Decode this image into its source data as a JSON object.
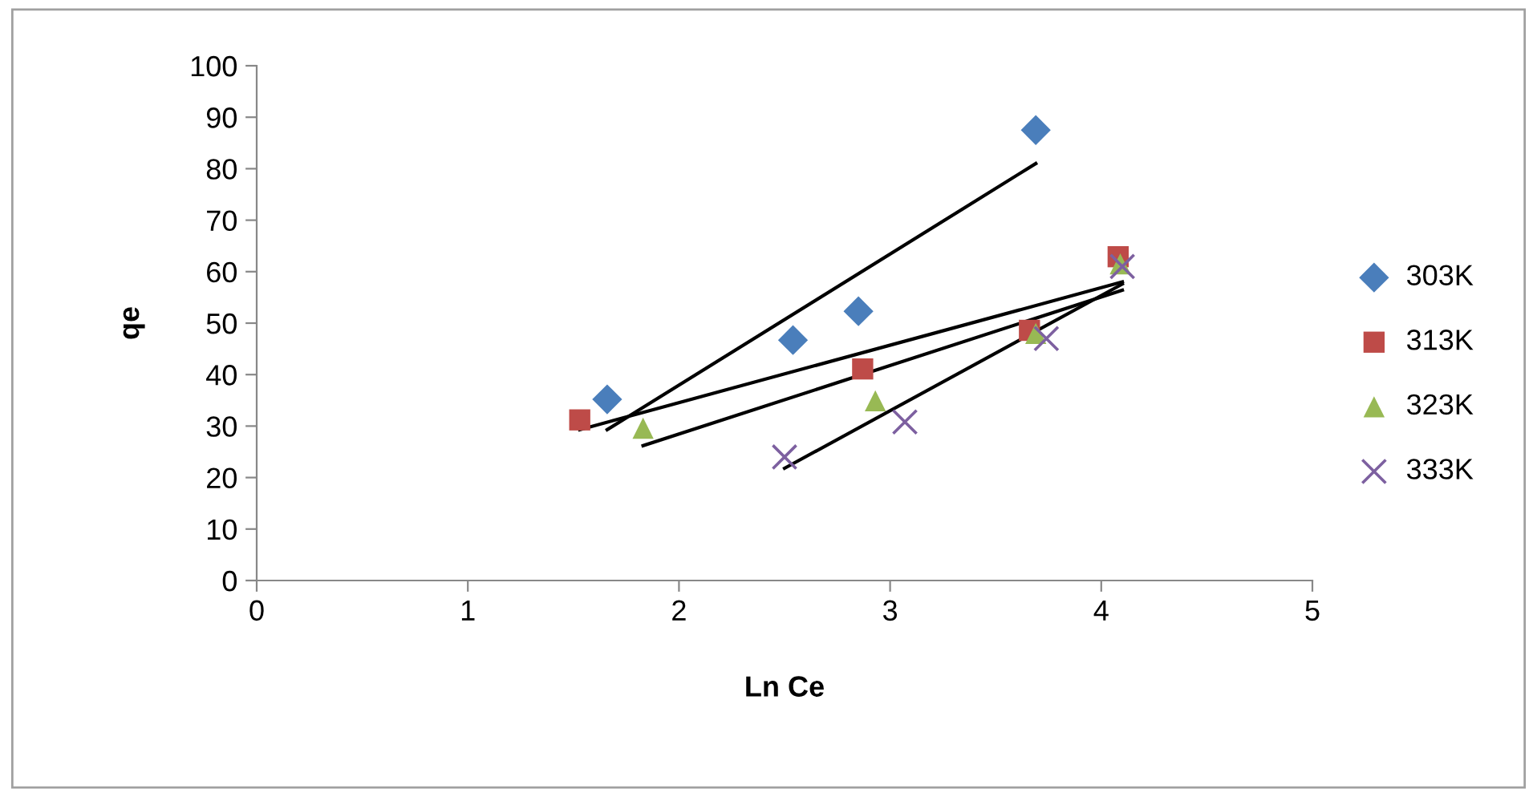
{
  "chart_data": {
    "type": "scatter",
    "xlabel": "Ln Ce",
    "ylabel": "qe",
    "xlim": [
      0,
      5
    ],
    "xticks": [
      0,
      1,
      2,
      3,
      4,
      5
    ],
    "ylim": [
      0,
      100
    ],
    "yticks": [
      0,
      10,
      20,
      30,
      40,
      50,
      60,
      70,
      80,
      90,
      100
    ],
    "grid": false,
    "legend": "right",
    "series": [
      {
        "name": "303K",
        "color": "#4a7ebb",
        "marker": "diamond",
        "x": [
          1.66,
          2.54,
          2.85,
          3.69
        ],
        "values": [
          35.2,
          46.7,
          52.3,
          87.5
        ]
      },
      {
        "name": "313K",
        "color": "#be4b48",
        "marker": "square",
        "x": [
          1.53,
          2.87,
          3.66,
          4.08
        ],
        "values": [
          31.2,
          41.1,
          48.6,
          62.9
        ]
      },
      {
        "name": "323K",
        "color": "#98b954",
        "marker": "triangle",
        "x": [
          1.83,
          2.93,
          3.69,
          4.09
        ],
        "values": [
          29.6,
          34.9,
          48.0,
          61.5
        ]
      },
      {
        "name": "333K",
        "color": "#7d60a0",
        "marker": "cross",
        "x": [
          2.5,
          3.07,
          3.74,
          4.1
        ],
        "values": [
          24.0,
          30.8,
          47.0,
          61.0
        ]
      },
      {
        "type": "line",
        "color": "#000000",
        "marker": "none",
        "x": [
          1.66,
          3.69
        ],
        "values": [
          29.3,
          81.0
        ]
      },
      {
        "type": "line",
        "color": "#000000",
        "marker": "none",
        "x": [
          1.53,
          4.1
        ],
        "values": [
          29.3,
          58.0
        ]
      },
      {
        "type": "line",
        "color": "#000000",
        "marker": "none",
        "x": [
          1.83,
          4.1
        ],
        "values": [
          26.2,
          56.4
        ]
      },
      {
        "type": "line",
        "color": "#000000",
        "marker": "none",
        "x": [
          2.5,
          4.1
        ],
        "values": [
          21.8,
          57.6
        ]
      }
    ]
  }
}
